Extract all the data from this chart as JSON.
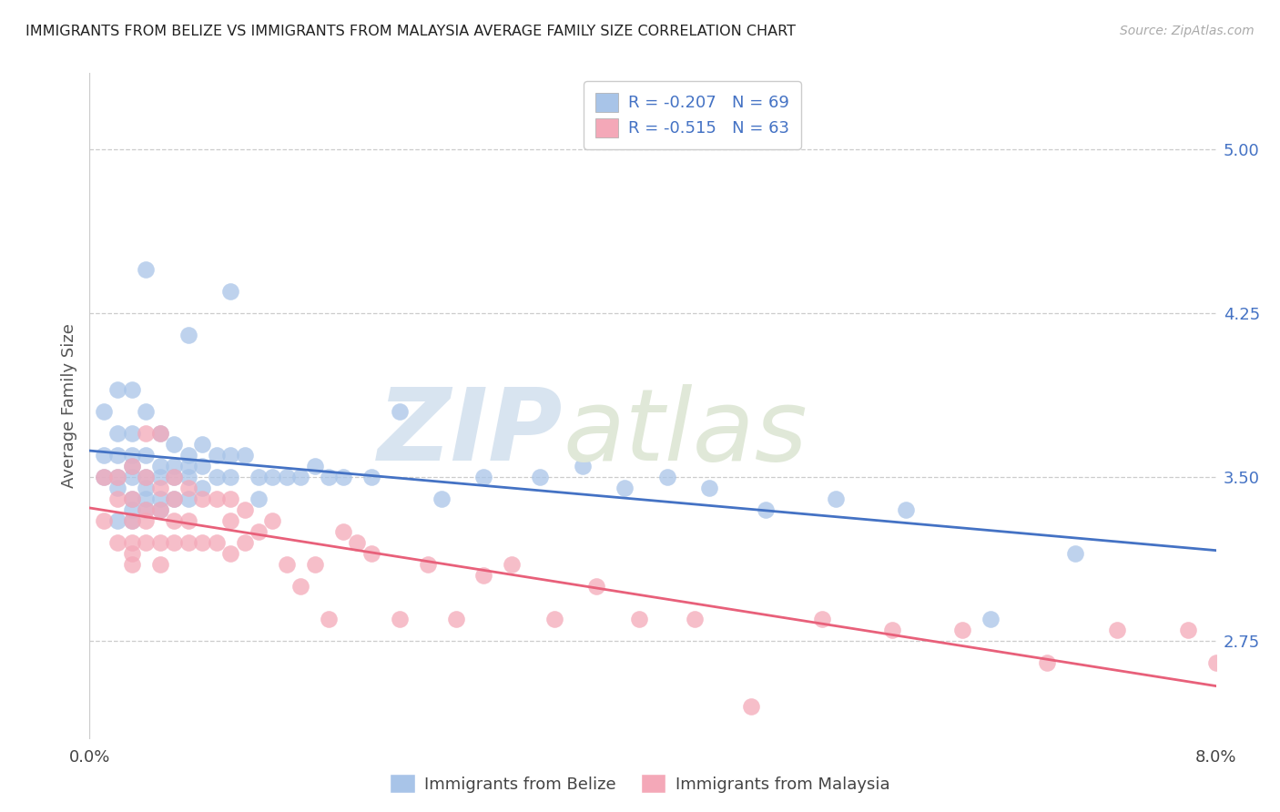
{
  "title": "IMMIGRANTS FROM BELIZE VS IMMIGRANTS FROM MALAYSIA AVERAGE FAMILY SIZE CORRELATION CHART",
  "source": "Source: ZipAtlas.com",
  "ylabel": "Average Family Size",
  "yticks": [
    2.75,
    3.5,
    4.25,
    5.0
  ],
  "xlim": [
    0.0,
    0.08
  ],
  "ylim": [
    2.3,
    5.35
  ],
  "belize_color": "#a8c4e8",
  "malaysia_color": "#f4a8b8",
  "belize_line_color": "#4472c4",
  "malaysia_line_color": "#e8607a",
  "belize_R": -0.207,
  "belize_N": 69,
  "malaysia_R": -0.515,
  "malaysia_N": 63,
  "belize_points_x": [
    0.001,
    0.001,
    0.001,
    0.002,
    0.002,
    0.002,
    0.002,
    0.002,
    0.002,
    0.003,
    0.003,
    0.003,
    0.003,
    0.003,
    0.003,
    0.003,
    0.003,
    0.004,
    0.004,
    0.004,
    0.004,
    0.004,
    0.004,
    0.004,
    0.005,
    0.005,
    0.005,
    0.005,
    0.005,
    0.006,
    0.006,
    0.006,
    0.006,
    0.007,
    0.007,
    0.007,
    0.007,
    0.007,
    0.008,
    0.008,
    0.008,
    0.009,
    0.009,
    0.01,
    0.01,
    0.01,
    0.011,
    0.012,
    0.012,
    0.013,
    0.014,
    0.015,
    0.016,
    0.017,
    0.018,
    0.02,
    0.022,
    0.025,
    0.028,
    0.032,
    0.035,
    0.038,
    0.041,
    0.044,
    0.048,
    0.053,
    0.058,
    0.064,
    0.07
  ],
  "belize_points_y": [
    3.8,
    3.6,
    3.5,
    3.9,
    3.7,
    3.6,
    3.5,
    3.45,
    3.3,
    3.9,
    3.7,
    3.6,
    3.55,
    3.5,
    3.4,
    3.35,
    3.3,
    4.45,
    3.8,
    3.6,
    3.5,
    3.45,
    3.4,
    3.35,
    3.7,
    3.55,
    3.5,
    3.4,
    3.35,
    3.65,
    3.55,
    3.5,
    3.4,
    4.15,
    3.6,
    3.55,
    3.5,
    3.4,
    3.65,
    3.55,
    3.45,
    3.6,
    3.5,
    4.35,
    3.6,
    3.5,
    3.6,
    3.5,
    3.4,
    3.5,
    3.5,
    3.5,
    3.55,
    3.5,
    3.5,
    3.5,
    3.8,
    3.4,
    3.5,
    3.5,
    3.55,
    3.45,
    3.5,
    3.45,
    3.35,
    3.4,
    3.35,
    2.85,
    3.15
  ],
  "malaysia_points_x": [
    0.001,
    0.001,
    0.002,
    0.002,
    0.002,
    0.003,
    0.003,
    0.003,
    0.003,
    0.003,
    0.003,
    0.004,
    0.004,
    0.004,
    0.004,
    0.004,
    0.005,
    0.005,
    0.005,
    0.005,
    0.005,
    0.006,
    0.006,
    0.006,
    0.006,
    0.007,
    0.007,
    0.007,
    0.008,
    0.008,
    0.009,
    0.009,
    0.01,
    0.01,
    0.01,
    0.011,
    0.011,
    0.012,
    0.013,
    0.014,
    0.015,
    0.016,
    0.017,
    0.018,
    0.019,
    0.02,
    0.022,
    0.024,
    0.026,
    0.028,
    0.03,
    0.033,
    0.036,
    0.039,
    0.043,
    0.047,
    0.052,
    0.057,
    0.062,
    0.068,
    0.073,
    0.078,
    0.08
  ],
  "malaysia_points_y": [
    3.5,
    3.3,
    3.5,
    3.4,
    3.2,
    3.55,
    3.4,
    3.3,
    3.2,
    3.15,
    3.1,
    3.7,
    3.5,
    3.35,
    3.3,
    3.2,
    3.7,
    3.45,
    3.35,
    3.2,
    3.1,
    3.5,
    3.4,
    3.3,
    3.2,
    3.45,
    3.3,
    3.2,
    3.4,
    3.2,
    3.4,
    3.2,
    3.4,
    3.3,
    3.15,
    3.35,
    3.2,
    3.25,
    3.3,
    3.1,
    3.0,
    3.1,
    2.85,
    3.25,
    3.2,
    3.15,
    2.85,
    3.1,
    2.85,
    3.05,
    3.1,
    2.85,
    3.0,
    2.85,
    2.85,
    2.45,
    2.85,
    2.8,
    2.8,
    2.65,
    2.8,
    2.8,
    2.65
  ]
}
